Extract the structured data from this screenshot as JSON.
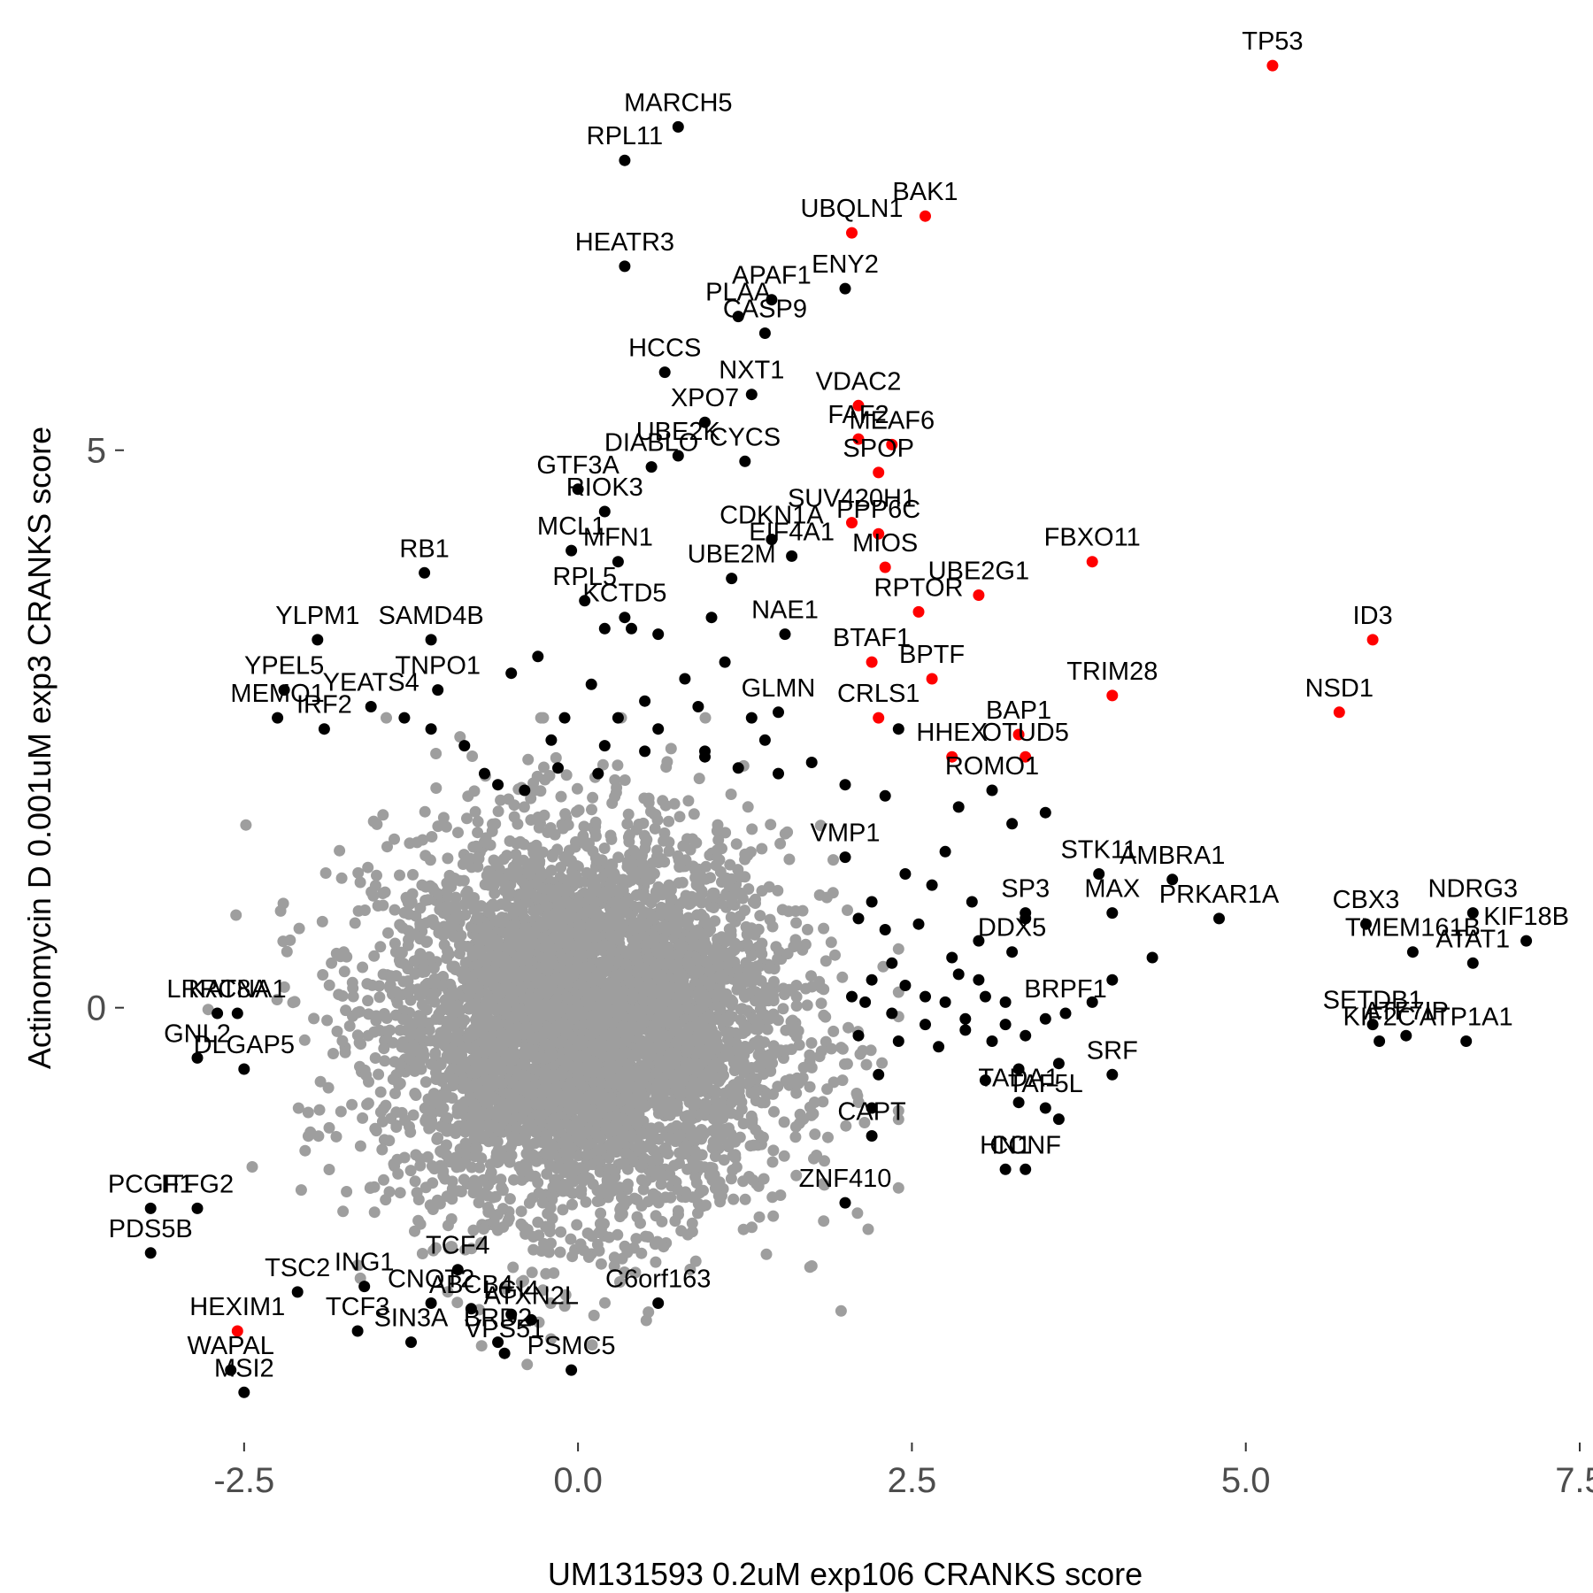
{
  "chart_data": {
    "type": "scatter",
    "xlabel": "UM131593 0.2uM exp106 CRANKS score",
    "ylabel": "Actinomycin D 0.001uM exp3 CRANKS score",
    "xlim": [
      -3.4,
      7.5
    ],
    "ylim": [
      -3.9,
      8.8
    ],
    "x_ticks": [
      {
        "value": -2.5,
        "label": "-2.5"
      },
      {
        "value": 0,
        "label": "0.0"
      },
      {
        "value": 2.5,
        "label": "2.5"
      },
      {
        "value": 5,
        "label": "5.0"
      },
      {
        "value": 7.5,
        "label": "7.5"
      }
    ],
    "y_ticks": [
      {
        "value": 0,
        "label": "0"
      },
      {
        "value": 5,
        "label": "5"
      }
    ],
    "grid": false,
    "colors": {
      "background": "#ffffff",
      "bulk": "#9e9e9e",
      "labeled": "#000000",
      "highlight": "#ff0000",
      "tick_text": "#4d4d4d",
      "tick_mark": "#333333"
    },
    "background_cloud": {
      "center": [
        0.05,
        -0.15
      ],
      "sd": [
        0.75,
        0.85
      ],
      "n_points": 5200,
      "color": "#9e9e9e"
    },
    "labeled_points": [
      {
        "gene": "TP53",
        "x": 5.2,
        "y": 8.45,
        "highlight": true
      },
      {
        "gene": "MARCH5",
        "x": 0.75,
        "y": 7.9,
        "highlight": false
      },
      {
        "gene": "RPL11",
        "x": 0.35,
        "y": 7.6,
        "highlight": false
      },
      {
        "gene": "BAK1",
        "x": 2.6,
        "y": 7.1,
        "highlight": true
      },
      {
        "gene": "UBQLN1",
        "x": 2.05,
        "y": 6.95,
        "highlight": true
      },
      {
        "gene": "HEATR3",
        "x": 0.35,
        "y": 6.65,
        "highlight": false
      },
      {
        "gene": "ENY2",
        "x": 2.0,
        "y": 6.45,
        "highlight": false
      },
      {
        "gene": "APAF1",
        "x": 1.45,
        "y": 6.35,
        "highlight": false
      },
      {
        "gene": "PLAA",
        "x": 1.2,
        "y": 6.2,
        "highlight": false
      },
      {
        "gene": "CASP9",
        "x": 1.4,
        "y": 6.05,
        "highlight": false
      },
      {
        "gene": "HCCS",
        "x": 0.65,
        "y": 5.7,
        "highlight": false
      },
      {
        "gene": "NXT1",
        "x": 1.3,
        "y": 5.5,
        "highlight": false
      },
      {
        "gene": "VDAC2",
        "x": 2.1,
        "y": 5.4,
        "highlight": true
      },
      {
        "gene": "XPO7",
        "x": 0.95,
        "y": 5.25,
        "highlight": false
      },
      {
        "gene": "UBE2K",
        "x": 0.75,
        "y": 4.95,
        "highlight": false
      },
      {
        "gene": "FAF2",
        "x": 2.1,
        "y": 5.1,
        "highlight": true
      },
      {
        "gene": "MEAF6",
        "x": 2.35,
        "y": 5.05,
        "highlight": true
      },
      {
        "gene": "DIABLO",
        "x": 0.55,
        "y": 4.85,
        "highlight": false
      },
      {
        "gene": "CYCS",
        "x": 1.25,
        "y": 4.9,
        "highlight": false
      },
      {
        "gene": "SPOP",
        "x": 2.25,
        "y": 4.8,
        "highlight": true
      },
      {
        "gene": "GTF3A",
        "x": 0.0,
        "y": 4.65,
        "highlight": false
      },
      {
        "gene": "RIOK3",
        "x": 0.2,
        "y": 4.45,
        "highlight": false
      },
      {
        "gene": "CDKN1A",
        "x": 1.45,
        "y": 4.2,
        "highlight": false
      },
      {
        "gene": "SUV420H1",
        "x": 2.05,
        "y": 4.35,
        "highlight": true
      },
      {
        "gene": "PPP6C",
        "x": 2.25,
        "y": 4.25,
        "highlight": true
      },
      {
        "gene": "FBXO11",
        "x": 3.85,
        "y": 4.0,
        "highlight": true
      },
      {
        "gene": "MCL1",
        "x": -0.05,
        "y": 4.1,
        "highlight": false
      },
      {
        "gene": "RB1",
        "x": -1.15,
        "y": 3.9,
        "highlight": false
      },
      {
        "gene": "MFN1",
        "x": 0.3,
        "y": 4.0,
        "highlight": false
      },
      {
        "gene": "EIF4A1",
        "x": 1.6,
        "y": 4.05,
        "highlight": false
      },
      {
        "gene": "MIOS",
        "x": 2.3,
        "y": 3.95,
        "highlight": true
      },
      {
        "gene": "UBE2G1",
        "x": 3.0,
        "y": 3.7,
        "highlight": true
      },
      {
        "gene": "UBE2M",
        "x": 1.15,
        "y": 3.85,
        "highlight": false
      },
      {
        "gene": "RPL5",
        "x": 0.05,
        "y": 3.65,
        "highlight": false
      },
      {
        "gene": "KCTD5",
        "x": 0.35,
        "y": 3.5,
        "highlight": false
      },
      {
        "gene": "RPTOR",
        "x": 2.55,
        "y": 3.55,
        "highlight": true
      },
      {
        "gene": "YLPM1",
        "x": -1.95,
        "y": 3.3,
        "highlight": false
      },
      {
        "gene": "SAMD4B",
        "x": -1.1,
        "y": 3.3,
        "highlight": false
      },
      {
        "gene": "ID3",
        "x": 5.95,
        "y": 3.3,
        "highlight": true
      },
      {
        "gene": "NAE1",
        "x": 1.55,
        "y": 3.35,
        "highlight": false
      },
      {
        "gene": "YPEL5",
        "x": -2.2,
        "y": 2.85,
        "highlight": false
      },
      {
        "gene": "TNPO1",
        "x": -1.05,
        "y": 2.85,
        "highlight": false
      },
      {
        "gene": "BTAF1",
        "x": 2.2,
        "y": 3.1,
        "highlight": true
      },
      {
        "gene": "GLMN",
        "x": 1.5,
        "y": 2.65,
        "highlight": false
      },
      {
        "gene": "BPTF",
        "x": 2.65,
        "y": 2.95,
        "highlight": true
      },
      {
        "gene": "BAP1",
        "x": 3.3,
        "y": 2.45,
        "highlight": true
      },
      {
        "gene": "TRIM28",
        "x": 4.0,
        "y": 2.8,
        "highlight": true
      },
      {
        "gene": "NSD1",
        "x": 5.7,
        "y": 2.65,
        "highlight": true
      },
      {
        "gene": "IRF2",
        "x": -1.9,
        "y": 2.5,
        "highlight": false
      },
      {
        "gene": "MEMO1",
        "x": -2.25,
        "y": 2.6,
        "highlight": false
      },
      {
        "gene": "YEATS4",
        "x": -1.55,
        "y": 2.7,
        "highlight": false
      },
      {
        "gene": "CRLS1",
        "x": 2.25,
        "y": 2.6,
        "highlight": true
      },
      {
        "gene": "HHEX",
        "x": 2.8,
        "y": 2.25,
        "highlight": true
      },
      {
        "gene": "OTUD5",
        "x": 3.35,
        "y": 2.25,
        "highlight": true
      },
      {
        "gene": "ROMO1",
        "x": 3.1,
        "y": 1.95,
        "highlight": false
      },
      {
        "gene": "STK11",
        "x": 3.9,
        "y": 1.2,
        "highlight": false
      },
      {
        "gene": "AMBRA1",
        "x": 4.45,
        "y": 1.15,
        "highlight": false
      },
      {
        "gene": "NDRG3",
        "x": 6.7,
        "y": 0.85,
        "highlight": false
      },
      {
        "gene": "VMP1",
        "x": 2.0,
        "y": 1.35,
        "highlight": false
      },
      {
        "gene": "SP3",
        "x": 3.35,
        "y": 0.85,
        "highlight": false
      },
      {
        "gene": "MAX",
        "x": 4.0,
        "y": 0.85,
        "highlight": false
      },
      {
        "gene": "CBX3",
        "x": 5.9,
        "y": 0.75,
        "highlight": false
      },
      {
        "gene": "KIF18B",
        "x": 7.1,
        "y": 0.6,
        "highlight": false
      },
      {
        "gene": "DDX5",
        "x": 3.25,
        "y": 0.5,
        "highlight": false
      },
      {
        "gene": "PRKAR1A",
        "x": 4.8,
        "y": 0.8,
        "highlight": false
      },
      {
        "gene": "TMEM161B",
        "x": 6.25,
        "y": 0.5,
        "highlight": false
      },
      {
        "gene": "ATAT1",
        "x": 6.7,
        "y": 0.4,
        "highlight": false
      },
      {
        "gene": "LRRC8A",
        "x": -2.7,
        "y": -0.05,
        "highlight": false
      },
      {
        "gene": "KATNA1",
        "x": -2.55,
        "y": -0.05,
        "highlight": false
      },
      {
        "gene": "SETDB1",
        "x": 5.95,
        "y": -0.15,
        "highlight": false
      },
      {
        "gene": "ATF7IP",
        "x": 6.2,
        "y": -0.25,
        "highlight": false
      },
      {
        "gene": "BRPF1",
        "x": 3.65,
        "y": -0.05,
        "highlight": false
      },
      {
        "gene": "GNL2",
        "x": -2.85,
        "y": -0.45,
        "highlight": false
      },
      {
        "gene": "DLGAP5",
        "x": -2.5,
        "y": -0.55,
        "highlight": false
      },
      {
        "gene": "SRF",
        "x": 4.0,
        "y": -0.6,
        "highlight": false
      },
      {
        "gene": "KIF2C",
        "x": 6.0,
        "y": -0.3,
        "highlight": false
      },
      {
        "gene": "ATP1A1",
        "x": 6.65,
        "y": -0.3,
        "highlight": false
      },
      {
        "gene": "TAF5L",
        "x": 3.5,
        "y": -0.9,
        "highlight": false
      },
      {
        "gene": "CAPT",
        "x": 2.2,
        "y": -1.15,
        "highlight": false
      },
      {
        "gene": "TADA1",
        "x": 3.3,
        "y": -0.85,
        "highlight": false
      },
      {
        "gene": "ZNF410",
        "x": 2.0,
        "y": -1.75,
        "highlight": false
      },
      {
        "gene": "HN1",
        "x": 3.2,
        "y": -1.45,
        "highlight": false
      },
      {
        "gene": "CCNF",
        "x": 3.35,
        "y": -1.45,
        "highlight": false
      },
      {
        "gene": "PCGF1",
        "x": -3.2,
        "y": -1.8,
        "highlight": false
      },
      {
        "gene": "ITFG2",
        "x": -2.85,
        "y": -1.8,
        "highlight": false
      },
      {
        "gene": "PDS5B",
        "x": -3.2,
        "y": -2.2,
        "highlight": false
      },
      {
        "gene": "TCF4",
        "x": -0.9,
        "y": -2.35,
        "highlight": false
      },
      {
        "gene": "C6orf163",
        "x": 0.6,
        "y": -2.65,
        "highlight": false
      },
      {
        "gene": "TSC2",
        "x": -2.1,
        "y": -2.55,
        "highlight": false
      },
      {
        "gene": "ING1",
        "x": -1.6,
        "y": -2.5,
        "highlight": false
      },
      {
        "gene": "LGI4",
        "x": -0.5,
        "y": -2.75,
        "highlight": false
      },
      {
        "gene": "ATXN2L",
        "x": -0.35,
        "y": -2.8,
        "highlight": false
      },
      {
        "gene": "HEXIM1",
        "x": -2.55,
        "y": -2.9,
        "highlight": true
      },
      {
        "gene": "TCF3",
        "x": -1.65,
        "y": -2.9,
        "highlight": false
      },
      {
        "gene": "WAPAL",
        "x": -2.6,
        "y": -3.25,
        "highlight": false
      },
      {
        "gene": "SIN3A",
        "x": -1.25,
        "y": -3.0,
        "highlight": false
      },
      {
        "gene": "ABCB4",
        "x": -0.8,
        "y": -2.7,
        "highlight": false
      },
      {
        "gene": "BRD2",
        "x": -0.6,
        "y": -3.0,
        "highlight": false
      },
      {
        "gene": "PSMC5",
        "x": -0.05,
        "y": -3.25,
        "highlight": false
      },
      {
        "gene": "MSI2",
        "x": -2.5,
        "y": -3.45,
        "highlight": false
      },
      {
        "gene": "CNOT2",
        "x": -1.1,
        "y": -2.65,
        "highlight": false
      },
      {
        "gene": "VPS51",
        "x": -0.55,
        "y": -3.1,
        "highlight": false
      }
    ],
    "unlabeled_points": [
      {
        "x": 0.2,
        "y": 3.4
      },
      {
        "x": 0.4,
        "y": 3.4
      },
      {
        "x": 0.6,
        "y": 3.35
      },
      {
        "x": 1.0,
        "y": 3.5
      },
      {
        "x": -0.3,
        "y": 3.15
      },
      {
        "x": -0.5,
        "y": 3.0
      },
      {
        "x": 0.1,
        "y": 2.9
      },
      {
        "x": 0.5,
        "y": 2.75
      },
      {
        "x": 0.8,
        "y": 2.95
      },
      {
        "x": 1.1,
        "y": 3.1
      },
      {
        "x": -0.1,
        "y": 2.6
      },
      {
        "x": 0.3,
        "y": 2.6
      },
      {
        "x": 0.6,
        "y": 2.5
      },
      {
        "x": 0.9,
        "y": 2.7
      },
      {
        "x": -0.2,
        "y": 2.4
      },
      {
        "x": 0.2,
        "y": 2.35
      },
      {
        "x": 0.5,
        "y": 2.3
      },
      {
        "x": 0.95,
        "y": 2.3
      },
      {
        "x": 1.3,
        "y": 2.6
      },
      {
        "x": 1.4,
        "y": 2.4
      },
      {
        "x": -0.15,
        "y": 2.15
      },
      {
        "x": 0.15,
        "y": 2.1
      },
      {
        "x": 1.2,
        "y": 2.15
      },
      {
        "x": 1.5,
        "y": 2.1
      },
      {
        "x": 1.75,
        "y": 2.2
      },
      {
        "x": 2.0,
        "y": 2.0
      },
      {
        "x": 2.3,
        "y": 1.9
      },
      {
        "x": 2.85,
        "y": 1.8
      },
      {
        "x": 3.5,
        "y": 1.75
      },
      {
        "x": 3.25,
        "y": 1.65
      },
      {
        "x": 2.75,
        "y": 1.4
      },
      {
        "x": 2.45,
        "y": 1.2
      },
      {
        "x": 2.65,
        "y": 1.1
      },
      {
        "x": 2.2,
        "y": 0.95
      },
      {
        "x": 2.55,
        "y": 0.75
      },
      {
        "x": 2.95,
        "y": 0.95
      },
      {
        "x": 3.0,
        "y": 0.6
      },
      {
        "x": 3.35,
        "y": 0.8
      },
      {
        "x": 2.1,
        "y": 0.8
      },
      {
        "x": 2.3,
        "y": 0.7
      },
      {
        "x": 2.35,
        "y": 0.4
      },
      {
        "x": 2.8,
        "y": 0.45
      },
      {
        "x": 2.85,
        "y": 0.3
      },
      {
        "x": 3.0,
        "y": 0.25
      },
      {
        "x": 2.2,
        "y": 0.25
      },
      {
        "x": 2.45,
        "y": 0.2
      },
      {
        "x": 2.6,
        "y": 0.1
      },
      {
        "x": 2.75,
        "y": 0.05
      },
      {
        "x": 3.05,
        "y": 0.1
      },
      {
        "x": 3.2,
        "y": 0.05
      },
      {
        "x": 2.05,
        "y": 0.1
      },
      {
        "x": 2.15,
        "y": 0.05
      },
      {
        "x": 2.35,
        "y": -0.05
      },
      {
        "x": 2.6,
        "y": -0.15
      },
      {
        "x": 2.9,
        "y": -0.1
      },
      {
        "x": 3.2,
        "y": -0.15
      },
      {
        "x": 3.5,
        "y": -0.1
      },
      {
        "x": 2.1,
        "y": -0.25
      },
      {
        "x": 2.4,
        "y": -0.3
      },
      {
        "x": 2.7,
        "y": -0.35
      },
      {
        "x": 2.9,
        "y": -0.2
      },
      {
        "x": 3.1,
        "y": -0.3
      },
      {
        "x": 3.35,
        "y": -0.25
      },
      {
        "x": 2.25,
        "y": -0.6
      },
      {
        "x": 2.2,
        "y": -0.9
      },
      {
        "x": 3.6,
        "y": -0.5
      },
      {
        "x": 3.05,
        "y": -0.65
      },
      {
        "x": 3.3,
        "y": -0.55
      },
      {
        "x": 3.6,
        "y": -1.0
      },
      {
        "x": 4.0,
        "y": 0.25
      },
      {
        "x": 3.85,
        "y": 0.05
      },
      {
        "x": 4.3,
        "y": 0.45
      },
      {
        "x": -1.1,
        "y": 2.5
      },
      {
        "x": -0.85,
        "y": 2.35
      },
      {
        "x": -0.7,
        "y": 2.1
      },
      {
        "x": -0.6,
        "y": 2.0
      },
      {
        "x": -0.4,
        "y": 1.95
      },
      {
        "x": 0.95,
        "y": 2.25
      },
      {
        "x": 2.4,
        "y": 2.5
      },
      {
        "x": -1.3,
        "y": 2.6
      }
    ]
  }
}
